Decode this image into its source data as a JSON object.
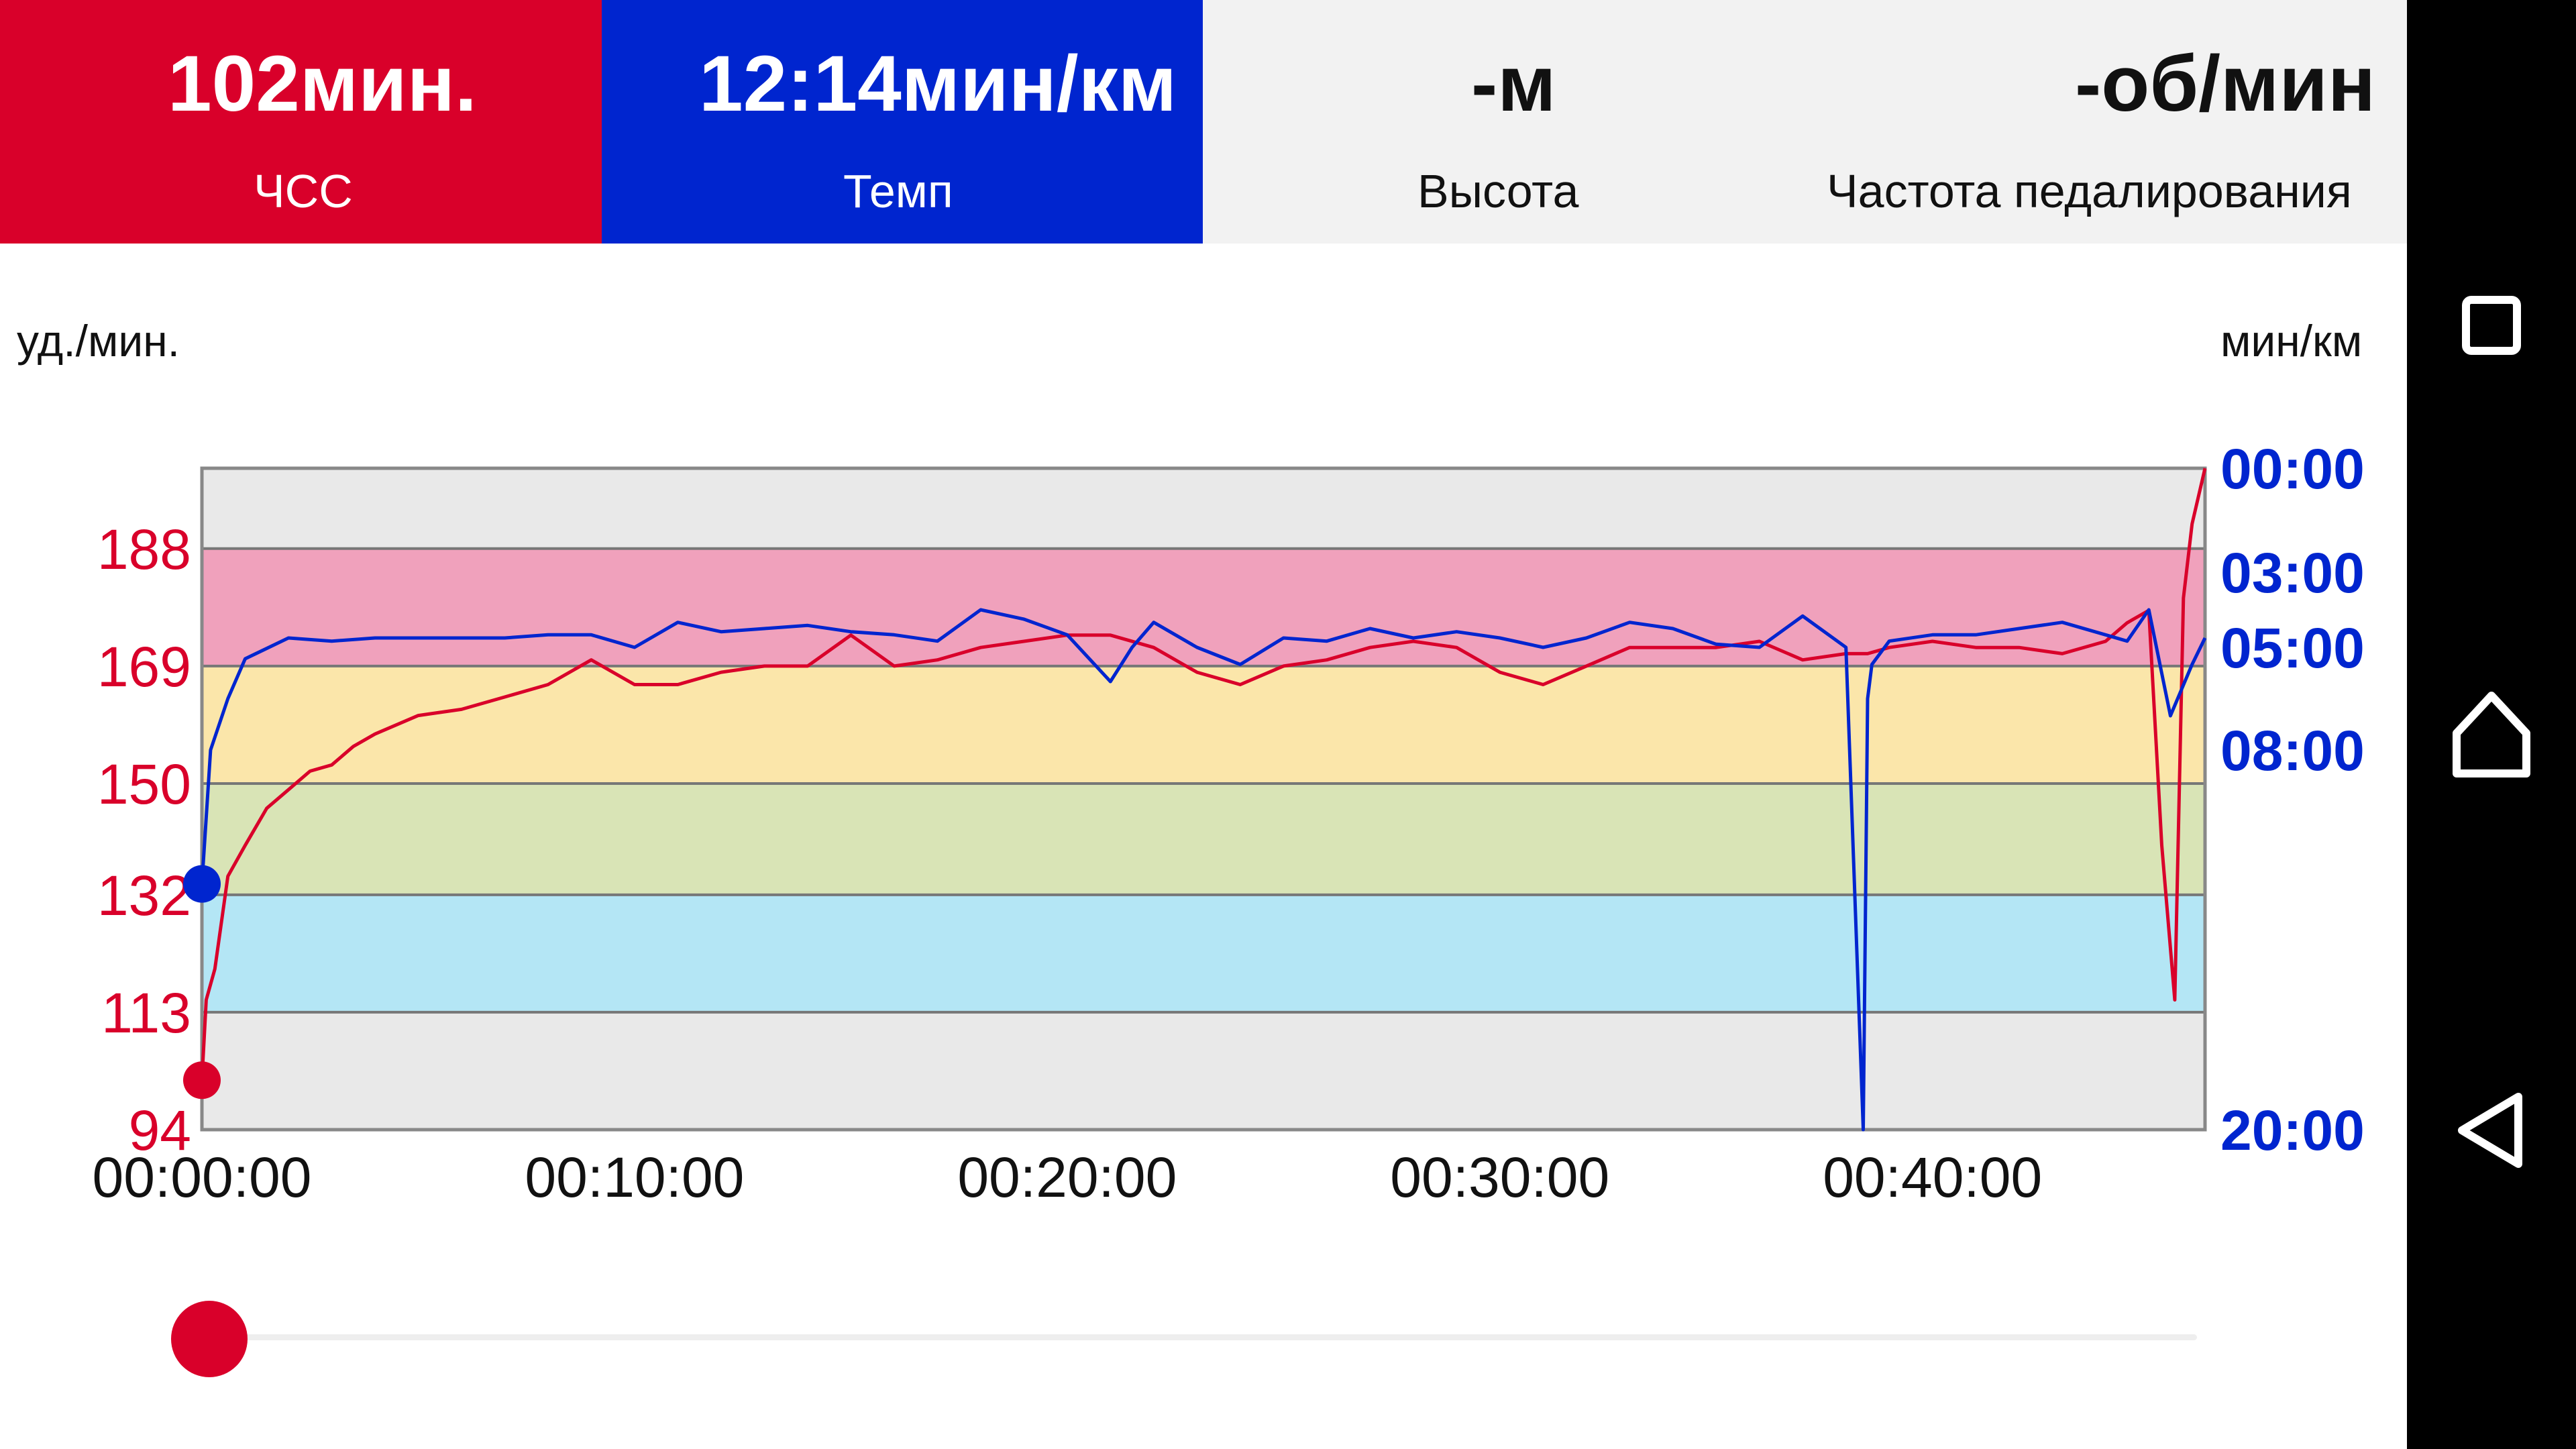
{
  "metrics": {
    "heart_rate": {
      "value": "102мин.",
      "label": "ЧСС"
    },
    "pace": {
      "value": "12:14мин/км",
      "label": "Темп"
    },
    "altitude": {
      "value": "-м",
      "label": "Высота"
    },
    "cadence": {
      "value": "-об/мин",
      "label": "Частота педалирования"
    }
  },
  "colors": {
    "hr": "#d9002a",
    "pace": "#0025cf",
    "zone_red": "#f0a1bc",
    "zone_yellow": "#fbe6aa",
    "zone_green": "#d9e4b6",
    "zone_blue": "#b4e6f5",
    "zone_gray": "#e9e9e9"
  },
  "chart_data": {
    "type": "line",
    "left_axis_unit": "уд./мин.",
    "right_axis_unit": "мин/км",
    "left_ticks": [
      "188",
      "169",
      "150",
      "132",
      "113",
      "94"
    ],
    "right_ticks": [
      "00:00",
      "03:00",
      "05:00",
      "08:00",
      "20:00"
    ],
    "x_ticks": [
      "00:00:00",
      "00:10:00",
      "00:20:00",
      "00:30:00",
      "00:40:00"
    ],
    "hr_ylim": [
      94,
      201
    ],
    "x_range_minutes": [
      0,
      46.3
    ],
    "hr_zones": [
      {
        "from": 188,
        "to": 201,
        "color": "zone_gray"
      },
      {
        "from": 169,
        "to": 188,
        "color": "zone_red"
      },
      {
        "from": 150,
        "to": 169,
        "color": "zone_yellow"
      },
      {
        "from": 132,
        "to": 150,
        "color": "zone_green"
      },
      {
        "from": 113,
        "to": 132,
        "color": "zone_blue"
      },
      {
        "from": 94,
        "to": 113,
        "color": "zone_gray"
      }
    ],
    "series": [
      {
        "name": "ЧСС",
        "axis": "left",
        "x": [
          0,
          0.1,
          0.3,
          0.6,
          1,
          1.5,
          2,
          2.5,
          3,
          3.5,
          4,
          5,
          6,
          7,
          8,
          9,
          10,
          11,
          12,
          13,
          14,
          15,
          16,
          17,
          18,
          19,
          20,
          21,
          22,
          23,
          24,
          25,
          26,
          27,
          28,
          29,
          30,
          31,
          32,
          33,
          34,
          35,
          36,
          37,
          38,
          38.5,
          39,
          40,
          41,
          42,
          43,
          44,
          44.5,
          45,
          45.3,
          45.6,
          45.8,
          46,
          46.3
        ],
        "values": [
          102,
          115,
          120,
          135,
          140,
          146,
          149,
          152,
          153,
          156,
          158,
          161,
          162,
          164,
          166,
          170,
          166,
          166,
          168,
          169,
          169,
          174,
          169,
          170,
          172,
          173,
          174,
          174,
          172,
          168,
          166,
          169,
          170,
          172,
          173,
          172,
          168,
          166,
          169,
          172,
          172,
          172,
          173,
          170,
          171,
          171,
          172,
          173,
          172,
          172,
          171,
          173,
          176,
          178,
          140,
          115,
          180,
          192,
          201
        ]
      },
      {
        "name": "Темп",
        "axis": "right",
        "x": [
          0,
          0.2,
          0.6,
          1,
          2,
          3,
          4,
          5,
          6,
          7,
          8,
          9,
          10,
          11,
          12,
          13,
          14,
          15,
          16,
          17,
          18,
          19,
          20,
          21,
          21.5,
          22,
          23,
          24,
          25,
          26,
          27,
          28,
          29,
          30,
          31,
          32,
          33,
          34,
          35,
          36,
          37,
          38,
          38.4,
          38.5,
          38.6,
          39,
          40,
          41,
          42,
          43,
          44,
          44.5,
          45,
          45.5,
          46,
          46.3
        ],
        "values": [
          "12:14",
          "08:00",
          "06:30",
          "05:20",
          "04:45",
          "04:50",
          "04:45",
          "04:45",
          "04:45",
          "04:45",
          "04:40",
          "04:40",
          "05:00",
          "04:20",
          "04:35",
          "04:30",
          "04:25",
          "04:35",
          "04:40",
          "04:50",
          "04:00",
          "04:15",
          "04:40",
          "06:00",
          "05:00",
          "04:20",
          "05:00",
          "05:30",
          "04:45",
          "04:50",
          "04:30",
          "04:45",
          "04:35",
          "04:45",
          "05:00",
          "04:45",
          "04:20",
          "04:30",
          "04:55",
          "05:00",
          "04:10",
          "05:00",
          "20:00",
          "06:30",
          "05:30",
          "04:50",
          "04:40",
          "04:40",
          "04:30",
          "04:20",
          "04:40",
          "04:50",
          "04:00",
          "07:00",
          "05:30",
          "04:45"
        ]
      }
    ]
  },
  "slider": {
    "position": 0.0
  },
  "nav": {
    "recents": "square-icon",
    "home": "home-icon",
    "back": "back-triangle-icon"
  }
}
